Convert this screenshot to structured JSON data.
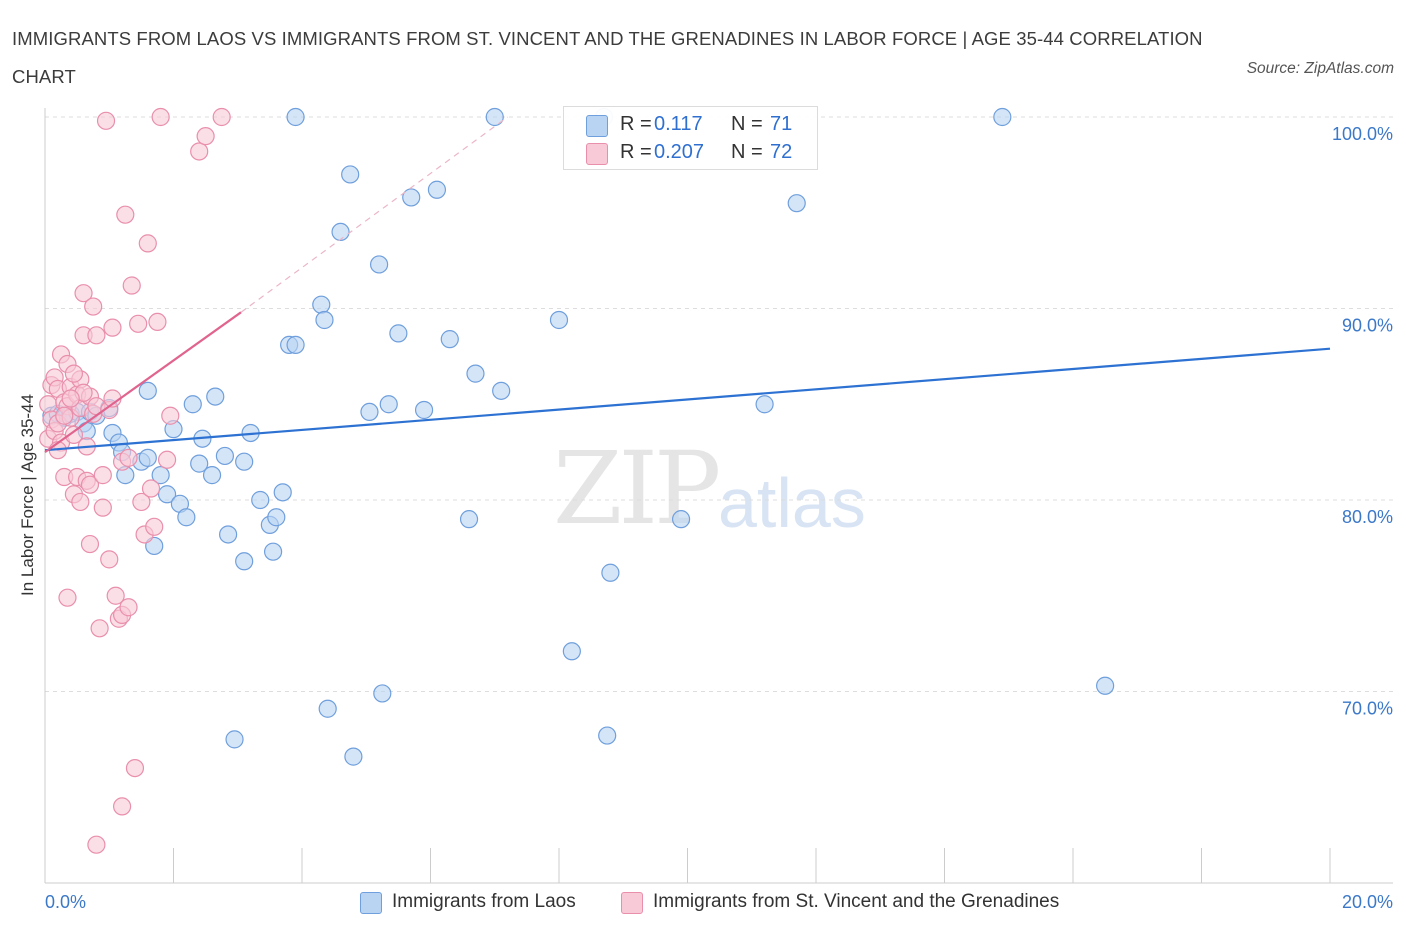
{
  "header": {
    "title": "IMMIGRANTS FROM LAOS VS IMMIGRANTS FROM ST. VINCENT AND THE GRENADINES IN LABOR FORCE | AGE 35-44 CORRELATION CHART",
    "source": "Source: ZipAtlas.com"
  },
  "watermark": {
    "zip": "ZIP",
    "atlas": "atlas"
  },
  "legend_top": {
    "rows": [
      {
        "r_label": "R =",
        "r_value": "0.117",
        "n_label": "N =",
        "n_value": "71"
      },
      {
        "r_label": "R =",
        "r_value": "0.207",
        "n_label": "N =",
        "n_value": "72"
      }
    ]
  },
  "colors": {
    "laos_fill": "#b9d3f3",
    "laos_stroke": "#6f9fdc",
    "laos_line": "#2d72d2",
    "svg_fill": "#f8c9d7",
    "svg_stroke": "#e98fac",
    "svg_line": "#e0648e",
    "tick_label": "#3b78c8",
    "grid": "#dddddd"
  },
  "chart_data": {
    "type": "scatter",
    "title": "IMMIGRANTS FROM LAOS VS IMMIGRANTS FROM ST. VINCENT AND THE GRENADINES IN LABOR FORCE | AGE 35-44 CORRELATION CHART",
    "xlabel": "",
    "ylabel": "In Labor Force | Age 35-44",
    "xlim": [
      0,
      20
    ],
    "ylim": [
      60,
      100
    ],
    "x_tick_labels": [
      "0.0%",
      "20.0%"
    ],
    "y_ticks": [
      70,
      80,
      90,
      100
    ],
    "y_tick_labels": [
      "70.0%",
      "80.0%",
      "90.0%",
      "100.0%"
    ],
    "grid": true,
    "legend": "bottom",
    "series": [
      {
        "name": "Immigrants from Laos",
        "r": 0.117,
        "n": 71,
        "trend": {
          "x": [
            0,
            20
          ],
          "y": [
            82.6,
            87.9
          ],
          "dashed_extension": false
        },
        "points": [
          [
            0.1,
            84.4
          ],
          [
            0.2,
            84.5
          ],
          [
            0.3,
            84.3
          ],
          [
            0.4,
            84.5
          ],
          [
            0.5,
            84.6
          ],
          [
            0.6,
            84.0
          ],
          [
            0.7,
            84.6
          ],
          [
            0.65,
            83.6
          ],
          [
            1.0,
            84.8
          ],
          [
            1.05,
            83.5
          ],
          [
            1.15,
            83.0
          ],
          [
            1.2,
            82.5
          ],
          [
            1.25,
            81.3
          ],
          [
            1.5,
            82.0
          ],
          [
            1.6,
            82.2
          ],
          [
            1.6,
            85.7
          ],
          [
            1.7,
            77.6
          ],
          [
            1.8,
            81.3
          ],
          [
            1.9,
            80.3
          ],
          [
            2.0,
            83.7
          ],
          [
            2.1,
            79.8
          ],
          [
            2.2,
            79.1
          ],
          [
            2.3,
            85.0
          ],
          [
            2.4,
            81.9
          ],
          [
            2.45,
            83.2
          ],
          [
            2.6,
            81.3
          ],
          [
            2.65,
            85.4
          ],
          [
            2.8,
            82.3
          ],
          [
            2.85,
            78.2
          ],
          [
            2.95,
            67.5
          ],
          [
            3.1,
            82.0
          ],
          [
            3.1,
            76.8
          ],
          [
            3.2,
            83.5
          ],
          [
            3.35,
            80.0
          ],
          [
            3.5,
            78.7
          ],
          [
            3.55,
            77.3
          ],
          [
            3.6,
            79.1
          ],
          [
            3.7,
            80.4
          ],
          [
            3.8,
            88.1
          ],
          [
            3.9,
            88.1
          ],
          [
            3.9,
            100.0
          ],
          [
            4.3,
            90.2
          ],
          [
            4.35,
            89.4
          ],
          [
            4.4,
            69.1
          ],
          [
            4.6,
            94.0
          ],
          [
            4.75,
            97.0
          ],
          [
            4.8,
            66.6
          ],
          [
            5.05,
            84.6
          ],
          [
            5.2,
            92.3
          ],
          [
            5.25,
            69.9
          ],
          [
            5.35,
            85.0
          ],
          [
            5.5,
            88.7
          ],
          [
            5.7,
            95.8
          ],
          [
            5.9,
            84.7
          ],
          [
            6.1,
            96.2
          ],
          [
            6.3,
            88.4
          ],
          [
            6.6,
            79.0
          ],
          [
            6.7,
            86.6
          ],
          [
            7.0,
            100.0
          ],
          [
            7.1,
            85.7
          ],
          [
            8.0,
            89.4
          ],
          [
            8.2,
            72.1
          ],
          [
            8.7,
            100.0
          ],
          [
            8.75,
            67.7
          ],
          [
            8.8,
            76.2
          ],
          [
            9.9,
            79.0
          ],
          [
            11.2,
            85.0
          ],
          [
            11.7,
            95.5
          ],
          [
            14.9,
            100.0
          ],
          [
            16.5,
            70.3
          ],
          [
            0.8,
            84.4
          ]
        ]
      },
      {
        "name": "Immigrants from St. Vincent and the Grenadines",
        "r": 0.207,
        "n": 72,
        "trend": {
          "x": [
            0,
            3.05
          ],
          "y": [
            82.5,
            89.8
          ],
          "dashed_extension": true,
          "dashed_to": [
            7.2,
            100.0
          ]
        },
        "points": [
          [
            0.05,
            83.2
          ],
          [
            0.05,
            85.0
          ],
          [
            0.1,
            86.0
          ],
          [
            0.1,
            84.2
          ],
          [
            0.15,
            83.6
          ],
          [
            0.15,
            86.4
          ],
          [
            0.2,
            85.8
          ],
          [
            0.2,
            84.0
          ],
          [
            0.25,
            83.0
          ],
          [
            0.25,
            87.6
          ],
          [
            0.3,
            85.1
          ],
          [
            0.3,
            81.2
          ],
          [
            0.35,
            84.9
          ],
          [
            0.35,
            87.1
          ],
          [
            0.4,
            85.9
          ],
          [
            0.4,
            84.3
          ],
          [
            0.45,
            83.4
          ],
          [
            0.45,
            80.3
          ],
          [
            0.5,
            81.2
          ],
          [
            0.5,
            85.5
          ],
          [
            0.55,
            86.3
          ],
          [
            0.55,
            84.8
          ],
          [
            0.6,
            88.6
          ],
          [
            0.6,
            90.8
          ],
          [
            0.65,
            82.8
          ],
          [
            0.65,
            81.0
          ],
          [
            0.7,
            85.4
          ],
          [
            0.7,
            80.8
          ],
          [
            0.75,
            84.5
          ],
          [
            0.75,
            90.1
          ],
          [
            0.8,
            88.6
          ],
          [
            0.8,
            84.9
          ],
          [
            0.85,
            73.3
          ],
          [
            0.9,
            81.3
          ],
          [
            0.95,
            99.8
          ],
          [
            1.0,
            84.7
          ],
          [
            1.0,
            76.9
          ],
          [
            1.05,
            89.0
          ],
          [
            1.1,
            75.0
          ],
          [
            1.15,
            73.8
          ],
          [
            1.2,
            82.0
          ],
          [
            1.2,
            74.0
          ],
          [
            1.25,
            94.9
          ],
          [
            1.3,
            82.2
          ],
          [
            1.35,
            91.2
          ],
          [
            1.4,
            66.0
          ],
          [
            1.45,
            89.2
          ],
          [
            1.5,
            79.9
          ],
          [
            1.55,
            78.2
          ],
          [
            1.6,
            93.4
          ],
          [
            1.65,
            80.6
          ],
          [
            1.7,
            78.6
          ],
          [
            1.75,
            89.3
          ],
          [
            1.8,
            100.0
          ],
          [
            1.9,
            82.1
          ],
          [
            1.95,
            84.4
          ],
          [
            2.4,
            98.2
          ],
          [
            2.5,
            99.0
          ],
          [
            2.75,
            100.0
          ],
          [
            0.35,
            74.9
          ],
          [
            0.8,
            62.0
          ],
          [
            1.2,
            64.0
          ],
          [
            0.6,
            85.6
          ],
          [
            0.2,
            82.6
          ],
          [
            0.45,
            86.6
          ],
          [
            1.05,
            85.3
          ],
          [
            0.3,
            84.4
          ],
          [
            0.9,
            79.6
          ],
          [
            0.55,
            79.9
          ],
          [
            1.3,
            74.4
          ],
          [
            0.7,
            77.7
          ],
          [
            0.4,
            85.3
          ]
        ]
      }
    ]
  },
  "legend_bottom": {
    "laos": "Immigrants from Laos",
    "svg": "Immigrants from St. Vincent and the Grenadines"
  }
}
